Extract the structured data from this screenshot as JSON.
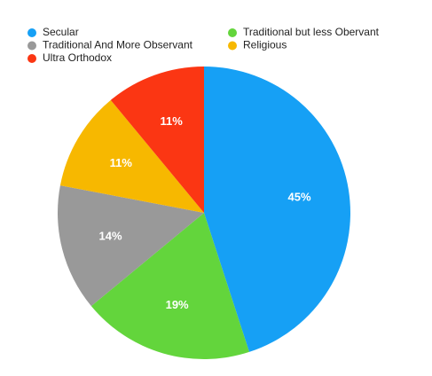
{
  "chart_data": {
    "type": "pie",
    "categories": [
      "Secular",
      "Traditional but less Obervant",
      "Traditional And More Observant",
      "Religious",
      "Ultra Orthodox"
    ],
    "values": [
      45,
      19,
      14,
      11,
      11
    ],
    "value_labels": [
      "45%",
      "19%",
      "14%",
      "11%",
      "11%"
    ],
    "colors": [
      "#16a0f5",
      "#63d53c",
      "#999999",
      "#f7b800",
      "#fb3613"
    ]
  }
}
